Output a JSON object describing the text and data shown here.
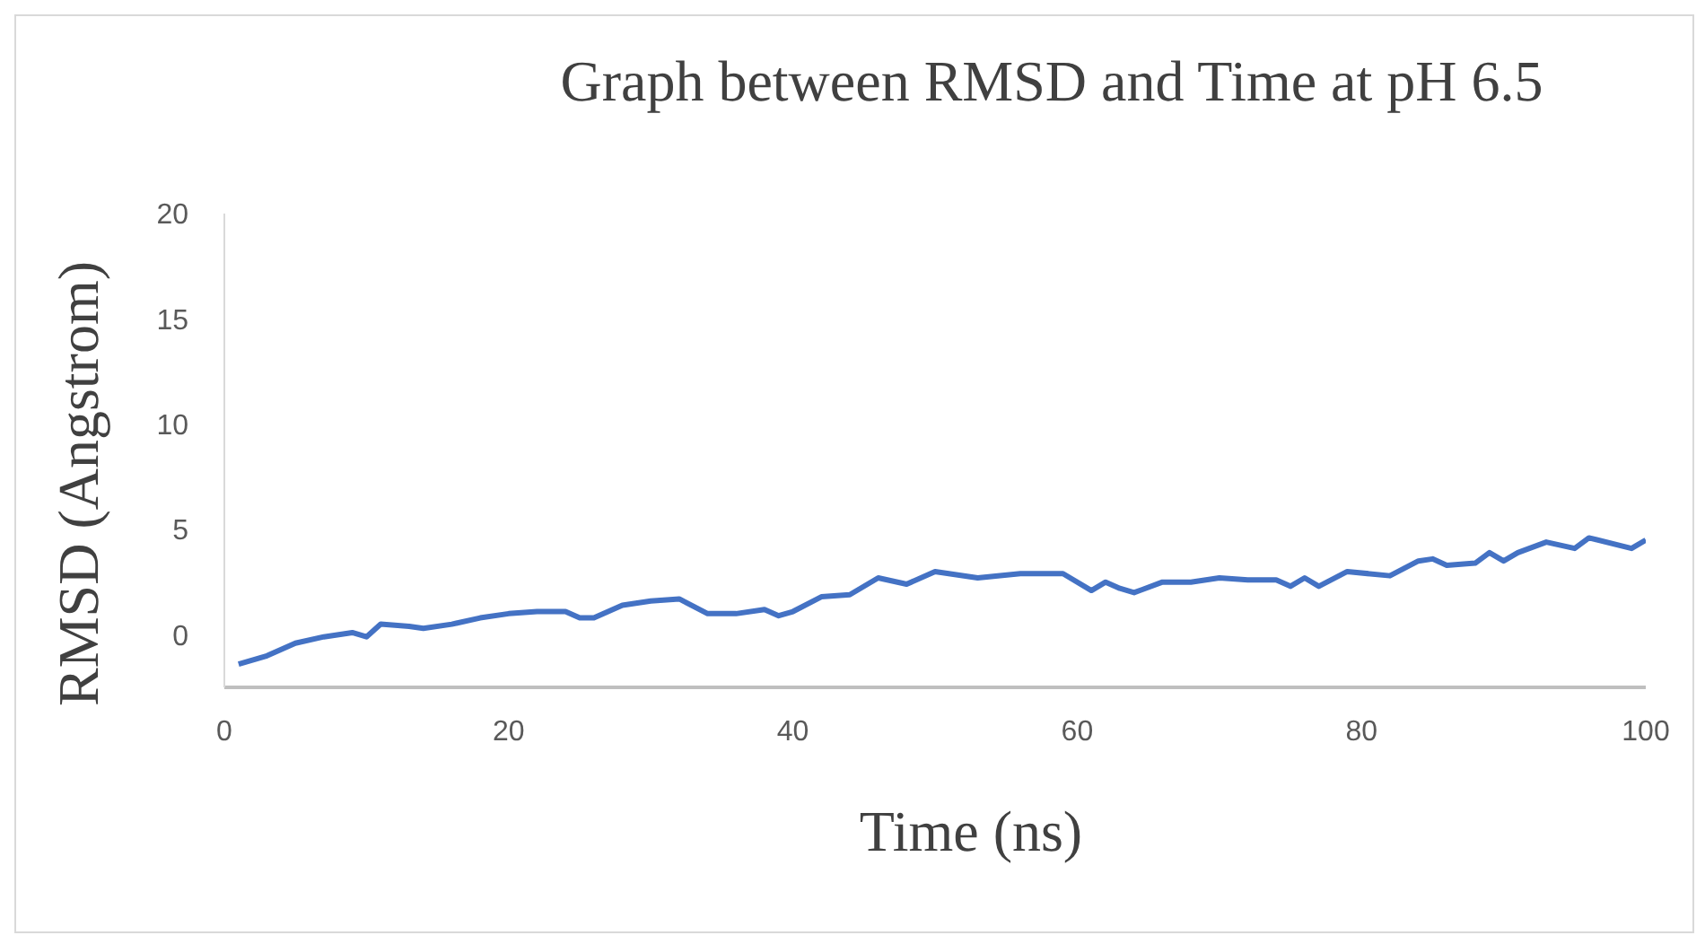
{
  "chart_data": {
    "type": "line",
    "title": "Graph between RMSD and Time at pH 6.5",
    "xlabel": "Time (ns)",
    "ylabel": "RMSD (Angstrom)",
    "x": [
      1,
      3,
      5,
      7,
      9,
      10,
      11,
      13,
      14,
      16,
      18,
      20,
      22,
      24,
      25,
      26,
      28,
      30,
      32,
      34,
      36,
      38,
      39,
      40,
      42,
      44,
      46,
      48,
      50,
      53,
      56,
      59,
      61,
      62,
      63,
      64,
      66,
      68,
      70,
      72,
      74,
      75,
      76,
      77,
      79,
      82,
      84,
      85,
      86,
      88,
      89,
      90,
      91,
      93,
      95,
      96,
      99,
      100
    ],
    "series": [
      {
        "color": "#4472c4",
        "values": [
          -1.4,
          -1.0,
          -0.4,
          -0.1,
          0.1,
          -0.1,
          0.5,
          0.4,
          0.3,
          0.5,
          0.8,
          1.0,
          1.1,
          1.1,
          0.8,
          0.8,
          1.4,
          1.6,
          1.7,
          1.0,
          1.0,
          1.2,
          0.9,
          1.1,
          1.8,
          1.9,
          2.7,
          2.4,
          3.0,
          2.7,
          2.9,
          2.9,
          2.1,
          2.5,
          2.2,
          2.0,
          2.5,
          2.5,
          2.7,
          2.6,
          2.6,
          2.3,
          2.7,
          2.3,
          3.0,
          2.8,
          3.5,
          3.6,
          3.3,
          3.4,
          3.9,
          3.5,
          3.9,
          4.4,
          4.1,
          4.6,
          4.1,
          4.5
        ]
      }
    ],
    "xlim": [
      0,
      100
    ],
    "xticks": [
      0,
      20,
      40,
      60,
      80,
      100
    ],
    "ylim": [
      -2.5,
      20
    ],
    "yticks": [
      0,
      5,
      10,
      15,
      20
    ],
    "grid": false,
    "legend": false,
    "marker": "none",
    "line_style": "solid"
  }
}
